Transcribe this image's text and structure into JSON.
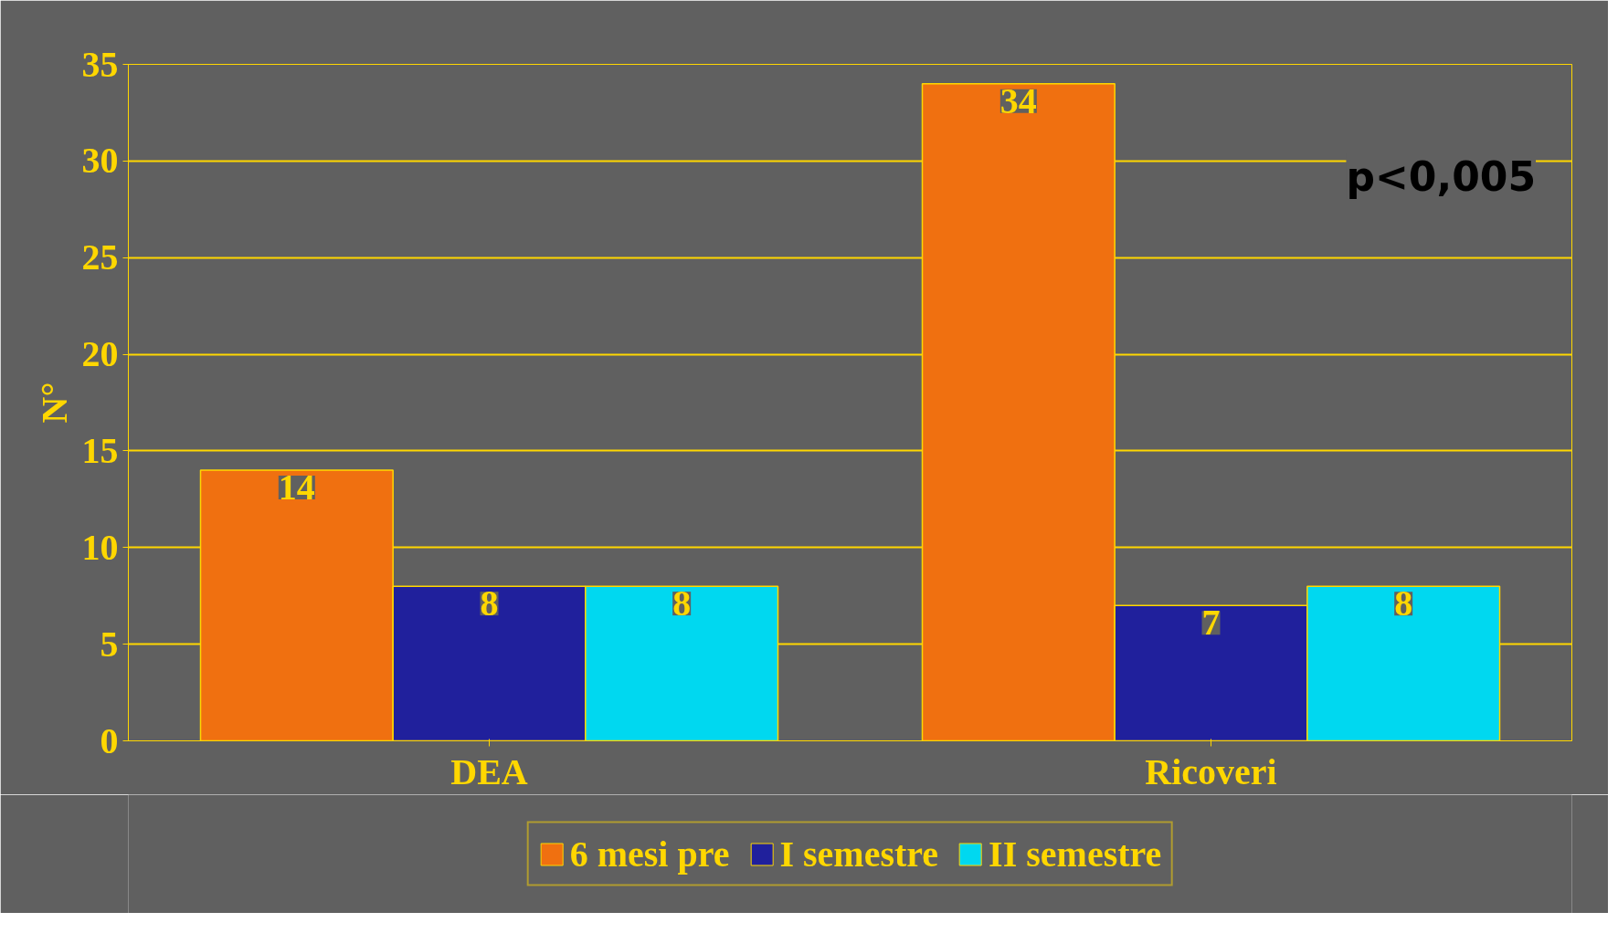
{
  "chart_data": {
    "type": "bar",
    "ylabel": "N°",
    "categories": [
      "DEA",
      "Ricoveri"
    ],
    "series": [
      {
        "name": "6 mesi pre",
        "color": "#f07010",
        "values": [
          14,
          34
        ]
      },
      {
        "name": "I semestre",
        "color": "#20209c",
        "values": [
          8,
          7
        ]
      },
      {
        "name": "II semestre",
        "color": "#00d8f0",
        "values": [
          8,
          8
        ]
      }
    ],
    "ylim": [
      0,
      35
    ],
    "yticks": [
      0,
      5,
      10,
      15,
      20,
      25,
      30,
      35
    ],
    "grid": "y",
    "legend": "bottom",
    "data_labels": true,
    "annotations": [
      {
        "text": "p<0,005"
      }
    ]
  }
}
